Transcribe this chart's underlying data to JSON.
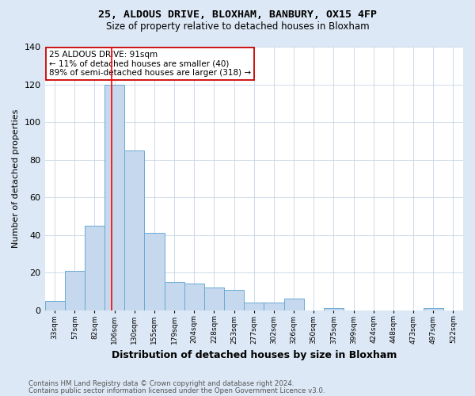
{
  "title1": "25, ALDOUS DRIVE, BLOXHAM, BANBURY, OX15 4FP",
  "title2": "Size of property relative to detached houses in Bloxham",
  "xlabel": "Distribution of detached houses by size in Bloxham",
  "ylabel": "Number of detached properties",
  "bin_labels": [
    "33sqm",
    "57sqm",
    "82sqm",
    "106sqm",
    "130sqm",
    "155sqm",
    "179sqm",
    "204sqm",
    "228sqm",
    "253sqm",
    "277sqm",
    "302sqm",
    "326sqm",
    "350sqm",
    "375sqm",
    "399sqm",
    "424sqm",
    "448sqm",
    "473sqm",
    "497sqm",
    "522sqm"
  ],
  "bar_heights": [
    5,
    21,
    45,
    120,
    85,
    41,
    15,
    14,
    12,
    11,
    4,
    4,
    6,
    0,
    1,
    0,
    0,
    0,
    0,
    1,
    0
  ],
  "bar_color": "#c5d8ee",
  "bar_edgecolor": "#6aaad4",
  "bar_linewidth": 0.7,
  "vline_index": 2.85,
  "vline_color": "red",
  "vline_linewidth": 1.2,
  "annotation_text": "25 ALDOUS DRIVE: 91sqm\n← 11% of detached houses are smaller (40)\n89% of semi-detached houses are larger (318) →",
  "annotation_box_color": "white",
  "annotation_box_edgecolor": "#cc0000",
  "ylim": [
    0,
    140
  ],
  "yticks": [
    0,
    20,
    40,
    60,
    80,
    100,
    120,
    140
  ],
  "bg_color": "#dce8f5",
  "plot_bg_color": "white",
  "grid_color": "#c8d4e4",
  "footer1": "Contains HM Land Registry data © Crown copyright and database right 2024.",
  "footer2": "Contains public sector information licensed under the Open Government Licence v3.0.",
  "figsize": [
    6.0,
    5.0
  ],
  "dpi": 100
}
